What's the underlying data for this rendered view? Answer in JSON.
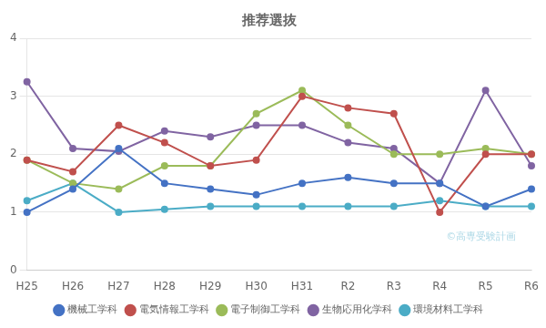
{
  "chart_data": {
    "type": "line",
    "title": "推荐選抜",
    "categories": [
      "H25",
      "H26",
      "H27",
      "H28",
      "H29",
      "H30",
      "H31",
      "R2",
      "R3",
      "R4",
      "R5",
      "R6"
    ],
    "series": [
      {
        "name": "機械工学科",
        "color": "#4472C4",
        "values": [
          1.0,
          1.4,
          2.1,
          1.5,
          1.4,
          1.3,
          1.5,
          1.6,
          1.5,
          1.5,
          1.1,
          1.4
        ]
      },
      {
        "name": "電気情報工学科",
        "color": "#C0504D",
        "values": [
          1.9,
          1.7,
          2.5,
          2.2,
          1.8,
          1.9,
          3.0,
          2.8,
          2.7,
          1.0,
          2.0,
          2.0
        ]
      },
      {
        "name": "電子制御工学科",
        "color": "#9BBB59",
        "values": [
          1.9,
          1.5,
          1.4,
          1.8,
          1.8,
          2.7,
          3.1,
          2.5,
          2.0,
          2.0,
          2.1,
          2.0
        ]
      },
      {
        "name": "生物応用化学科",
        "color": "#8064A2",
        "values": [
          3.25,
          2.1,
          2.05,
          2.4,
          2.3,
          2.5,
          2.5,
          2.2,
          2.1,
          1.5,
          3.1,
          1.8
        ]
      },
      {
        "name": "環境材料工学科",
        "color": "#4BACC6",
        "values": [
          1.2,
          1.5,
          1.0,
          1.05,
          1.1,
          1.1,
          1.1,
          1.1,
          1.1,
          1.2,
          1.1,
          1.1
        ]
      }
    ],
    "ylim": [
      0,
      4
    ],
    "yticks": [
      0,
      1,
      2,
      3,
      4
    ],
    "grid": "y",
    "legend": "bottom",
    "marker": "o",
    "annotations": [
      {
        "text": "©高専受験計画",
        "color": "#ADD8E6"
      }
    ]
  }
}
